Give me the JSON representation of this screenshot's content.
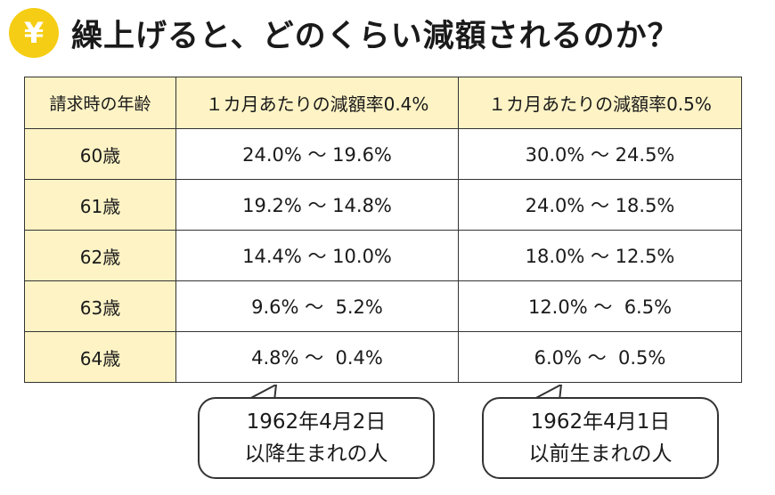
{
  "title": {
    "badge_symbol": "¥",
    "text": "繰上げると、どのくらい減額されるのか？"
  },
  "table": {
    "headers": [
      "請求時の年齢",
      "１カ月あたりの減額率0.4%",
      "１カ月あたりの減額率0.5%"
    ],
    "rows": [
      {
        "age": "60歳",
        "rate_04": "24.0% 〜 19.6%",
        "rate_05": "30.0% 〜 24.5%"
      },
      {
        "age": "61歳",
        "rate_04": "19.2% 〜 14.8%",
        "rate_05": "24.0% 〜 18.5%"
      },
      {
        "age": "62歳",
        "rate_04": "14.4% 〜 10.0%",
        "rate_05": "18.0% 〜 12.5%"
      },
      {
        "age": "63歳",
        "rate_04": "9.6% 〜  5.2%",
        "rate_05": "12.0% 〜  6.5%"
      },
      {
        "age": "64歳",
        "rate_04": "4.8% 〜  0.4%",
        "rate_05": "6.0% 〜  0.5%"
      }
    ]
  },
  "callouts": {
    "left": {
      "line1": "1962年4月2日",
      "line2": "以降生まれの人"
    },
    "right": {
      "line1": "1962年4月1日",
      "line2": "以前生まれの人"
    }
  },
  "colors": {
    "badge": "#f5cd14",
    "header_fill": "#fdf3c5",
    "border": "#333333"
  }
}
